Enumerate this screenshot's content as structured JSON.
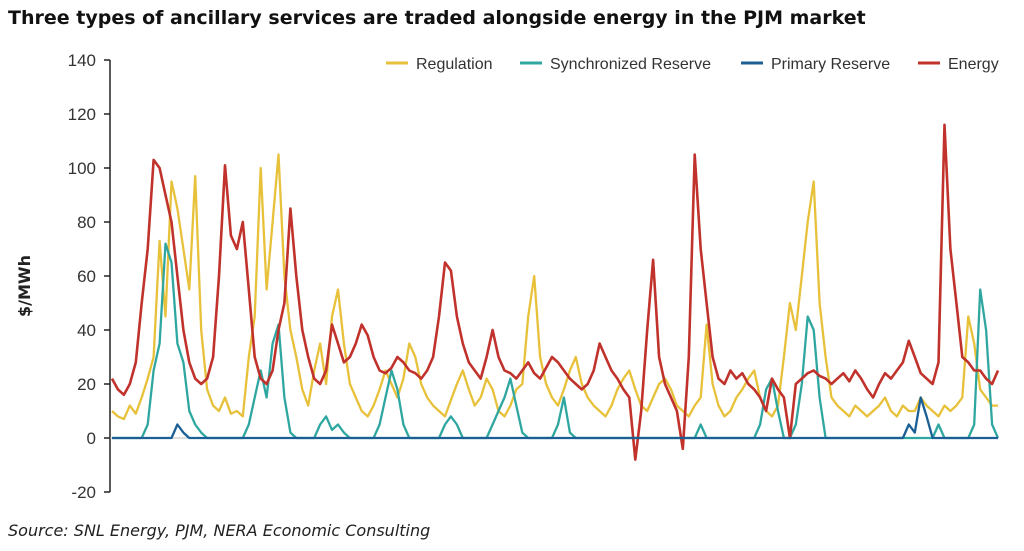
{
  "title": "Three types of ancillary services are traded alongside energy in the PJM market",
  "source": "Source: SNL Energy, PJM, NERA Economic Consulting",
  "colors": {
    "Regulation": "#e8c13a",
    "Synchronized Reserve": "#2fa7a0",
    "Primary Reserve": "#1b5f95",
    "Energy": "#c0322b"
  },
  "chart_data": {
    "type": "line",
    "ylabel": "$/MWh",
    "xlabel": "",
    "ylim": [
      -20,
      140
    ],
    "yticks": [
      -20,
      0,
      20,
      40,
      60,
      80,
      100,
      120,
      140
    ],
    "grid": false,
    "legend": "top-right",
    "x_count": 150,
    "series": [
      {
        "name": "Regulation",
        "values": [
          10,
          8,
          7,
          12,
          9,
          15,
          22,
          30,
          73,
          45,
          95,
          85,
          70,
          55,
          97,
          40,
          18,
          12,
          10,
          15,
          9,
          10,
          8,
          30,
          45,
          100,
          55,
          80,
          105,
          60,
          40,
          30,
          18,
          12,
          25,
          35,
          20,
          45,
          55,
          35,
          20,
          15,
          10,
          8,
          12,
          18,
          25,
          20,
          15,
          22,
          35,
          30,
          20,
          15,
          12,
          10,
          8,
          14,
          20,
          25,
          18,
          12,
          15,
          22,
          18,
          10,
          8,
          12,
          18,
          20,
          45,
          60,
          30,
          20,
          15,
          12,
          18,
          25,
          30,
          20,
          15,
          12,
          10,
          8,
          12,
          18,
          22,
          25,
          18,
          12,
          10,
          15,
          20,
          22,
          18,
          12,
          10,
          8,
          12,
          15,
          42,
          20,
          12,
          8,
          10,
          15,
          18,
          22,
          25,
          15,
          10,
          8,
          12,
          30,
          50,
          40,
          60,
          80,
          95,
          50,
          30,
          15,
          12,
          10,
          8,
          12,
          10,
          8,
          10,
          12,
          15,
          10,
          8,
          12,
          10,
          10,
          15,
          12,
          10,
          8,
          12,
          10,
          12,
          15,
          45,
          35,
          18,
          15,
          12,
          12
        ],
        "label_y": null
      },
      {
        "name": "Synchronized Reserve",
        "values": [
          0,
          0,
          0,
          0,
          0,
          0,
          5,
          25,
          35,
          72,
          65,
          35,
          28,
          10,
          5,
          2,
          0,
          0,
          0,
          0,
          0,
          0,
          0,
          5,
          15,
          25,
          15,
          35,
          42,
          15,
          2,
          0,
          0,
          0,
          0,
          5,
          8,
          3,
          5,
          2,
          0,
          0,
          0,
          0,
          0,
          5,
          15,
          25,
          18,
          5,
          0,
          0,
          0,
          0,
          0,
          0,
          5,
          8,
          5,
          0,
          0,
          0,
          0,
          0,
          5,
          10,
          15,
          22,
          12,
          2,
          0,
          0,
          0,
          0,
          0,
          5,
          15,
          2,
          0,
          0,
          0,
          0,
          0,
          0,
          0,
          0,
          0,
          0,
          0,
          0,
          0,
          0,
          0,
          0,
          0,
          0,
          0,
          0,
          0,
          5,
          0,
          0,
          0,
          0,
          0,
          0,
          0,
          0,
          0,
          5,
          18,
          22,
          10,
          0,
          0,
          5,
          20,
          45,
          40,
          15,
          0,
          0,
          0,
          0,
          0,
          0,
          0,
          0,
          0,
          0,
          0,
          0,
          0,
          0,
          0,
          0,
          0,
          0,
          0,
          5,
          0,
          0,
          0,
          0,
          0,
          5,
          55,
          40,
          5,
          0
        ],
        "label_y": null
      },
      {
        "name": "Primary Reserve",
        "values": [
          0,
          0,
          0,
          0,
          0,
          0,
          0,
          0,
          0,
          0,
          0,
          5,
          2,
          0,
          0,
          0,
          0,
          0,
          0,
          0,
          0,
          0,
          0,
          0,
          0,
          0,
          0,
          0,
          0,
          0,
          0,
          0,
          0,
          0,
          0,
          0,
          0,
          0,
          0,
          0,
          0,
          0,
          0,
          0,
          0,
          0,
          0,
          0,
          0,
          0,
          0,
          0,
          0,
          0,
          0,
          0,
          0,
          0,
          0,
          0,
          0,
          0,
          0,
          0,
          0,
          0,
          0,
          0,
          0,
          0,
          0,
          0,
          0,
          0,
          0,
          0,
          0,
          0,
          0,
          0,
          0,
          0,
          0,
          0,
          0,
          0,
          0,
          0,
          0,
          0,
          0,
          0,
          0,
          0,
          0,
          0,
          0,
          0,
          0,
          0,
          0,
          0,
          0,
          0,
          0,
          0,
          0,
          0,
          0,
          0,
          0,
          0,
          0,
          0,
          0,
          0,
          0,
          0,
          0,
          0,
          0,
          0,
          0,
          0,
          0,
          0,
          0,
          0,
          0,
          0,
          0,
          0,
          0,
          0,
          5,
          2,
          15,
          8,
          0,
          0,
          0,
          0,
          0,
          0,
          0,
          0,
          0,
          0,
          0,
          0
        ],
        "label_y": null
      },
      {
        "name": "Energy",
        "values": [
          22,
          18,
          16,
          20,
          28,
          50,
          70,
          103,
          100,
          90,
          80,
          60,
          40,
          28,
          22,
          20,
          22,
          30,
          60,
          101,
          75,
          70,
          80,
          55,
          30,
          22,
          20,
          25,
          40,
          50,
          85,
          60,
          40,
          30,
          22,
          20,
          25,
          42,
          35,
          28,
          30,
          35,
          42,
          38,
          30,
          25,
          24,
          26,
          30,
          28,
          25,
          24,
          22,
          25,
          30,
          45,
          65,
          62,
          45,
          35,
          28,
          25,
          22,
          30,
          40,
          30,
          25,
          24,
          22,
          25,
          28,
          24,
          22,
          26,
          30,
          28,
          25,
          22,
          20,
          18,
          20,
          25,
          35,
          30,
          25,
          22,
          18,
          15,
          -8,
          10,
          40,
          66,
          30,
          20,
          15,
          10,
          -4,
          30,
          105,
          70,
          50,
          30,
          22,
          20,
          25,
          22,
          24,
          20,
          18,
          15,
          10,
          22,
          18,
          15,
          0,
          20,
          22,
          24,
          25,
          23,
          22,
          20,
          22,
          24,
          21,
          25,
          22,
          18,
          15,
          20,
          24,
          22,
          25,
          28,
          36,
          30,
          24,
          22,
          20,
          28,
          116,
          70,
          50,
          30,
          28,
          25,
          25,
          22,
          20,
          25
        ],
        "label_y": null
      }
    ]
  }
}
